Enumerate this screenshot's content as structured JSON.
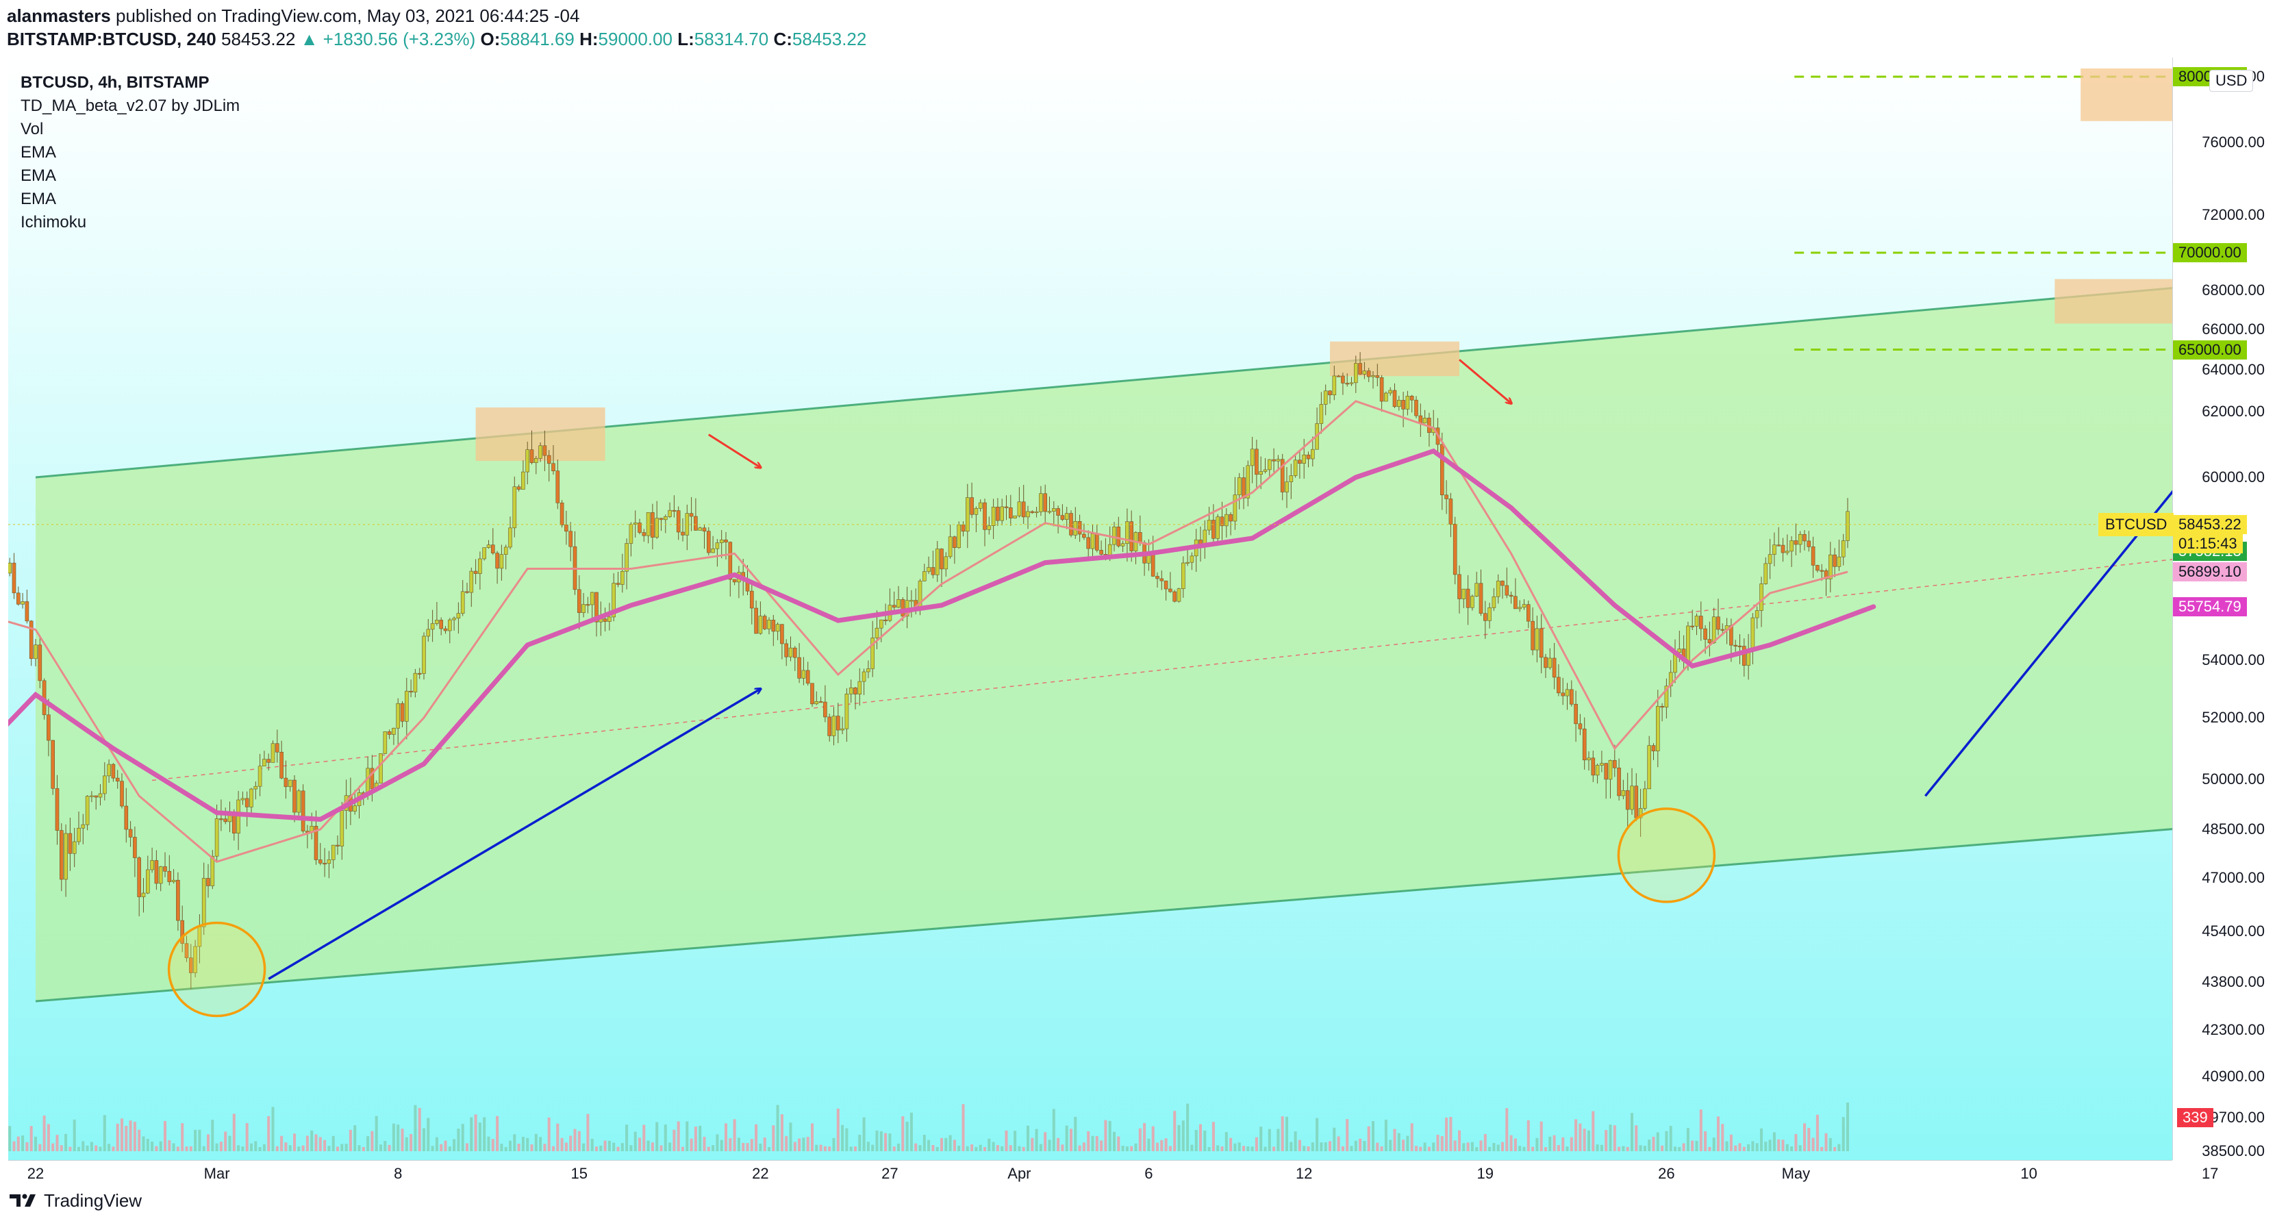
{
  "header": {
    "publisher": "alanmasters",
    "published_text": "published on TradingView.com, May 03, 2021 06:44:25 -04",
    "symbol": "BITSTAMP:BTCUSD, 240",
    "last": "58453.22",
    "change": "+1830.56 (+3.23%)",
    "open_label": "O:",
    "open": "58841.69",
    "high_label": "H:",
    "high": "59000.00",
    "low_label": "L:",
    "low": "58314.70",
    "close_label": "C:",
    "close": "58453.22"
  },
  "legend": {
    "title": "BTCUSD, 4h, BITSTAMP",
    "indicators": [
      "TD_MA_beta_v2.07 by JDLim",
      "Vol",
      "EMA",
      "EMA",
      "EMA",
      "Ichimoku"
    ]
  },
  "currency": "USD",
  "symbol_tag": "BTCUSD",
  "footer": {
    "brand": "TradingView"
  },
  "colors": {
    "channel_fill": "#b8f0a0",
    "channel_line": "#4caf7d",
    "level_line": "#8bd000",
    "zone": "#f5c78e",
    "ema_slow": "#d65cb0",
    "ema_fast": "#e88b8b",
    "arrow_blue": "#0a1fcf",
    "arrow_red": "#f2392d",
    "circle": "#f59e0b",
    "bg_top": "#ffffff",
    "bg_bottom": "#8ef7f7"
  },
  "chart_data": {
    "type": "candlestick",
    "title": "BTCUSD, 4h, BITSTAMP",
    "ylim": [
      37800,
      80500
    ],
    "xticks": [
      "22",
      "Mar",
      "8",
      "15",
      "22",
      "27",
      "Apr",
      "6",
      "12",
      "19",
      "26",
      "May",
      "10",
      "17"
    ],
    "yticks": [
      38500,
      39700,
      40900,
      42300,
      43800,
      45400,
      47000,
      48500,
      50000,
      52000,
      54000,
      60000,
      62000,
      64000,
      66000,
      68000,
      72000,
      76000,
      80000
    ],
    "price_labels": [
      {
        "value": 80000,
        "text": "80000.00",
        "color": "#8bd000"
      },
      {
        "value": 70000,
        "text": "70000.00",
        "color": "#8bd000"
      },
      {
        "value": 65000,
        "text": "65000.00",
        "color": "#8bd000"
      },
      {
        "value": 58453.22,
        "text": "58453.22",
        "color": "#f9e53a"
      },
      {
        "value": 57582.13,
        "text": "57582.13",
        "color": "#26a641"
      },
      {
        "value": 56899.1,
        "text": "56899.10",
        "color": "#f4a7d7"
      },
      {
        "value": 55754.79,
        "text": "55754.79",
        "color": "#e040c8"
      }
    ],
    "countdown": "01:15:43",
    "volume_label": "339",
    "channel": {
      "upper": [
        [
          "Feb 22",
          60000
        ],
        [
          "May 17",
          68300
        ]
      ],
      "lower": [
        [
          "Feb 22",
          43200
        ],
        [
          "May 17",
          48600
        ]
      ]
    },
    "levels": [
      80000,
      70000,
      65000
    ],
    "price_path": [
      [
        "Feb 20",
        56500
      ],
      [
        "Feb 21",
        57000
      ],
      [
        "Feb 22",
        54000
      ],
      [
        "Feb 23",
        47500
      ],
      [
        "Feb 24",
        49500
      ],
      [
        "Feb 25",
        50500
      ],
      [
        "Feb 26",
        46500
      ],
      [
        "Feb 27",
        47500
      ],
      [
        "Feb 28",
        44500
      ],
      [
        "Mar 1",
        48500
      ],
      [
        "Mar 2",
        49000
      ],
      [
        "Mar 3",
        51000
      ],
      [
        "Mar 4",
        49500
      ],
      [
        "Mar 5",
        47500
      ],
      [
        "Mar 6",
        49000
      ],
      [
        "Mar 7",
        50000
      ],
      [
        "Mar 8",
        52000
      ],
      [
        "Mar 9",
        54500
      ],
      [
        "Mar 10",
        55500
      ],
      [
        "Mar 11",
        57000
      ],
      [
        "Mar 12",
        57500
      ],
      [
        "Mar 13",
        61000
      ],
      [
        "Mar 14",
        60000
      ],
      [
        "Mar 15",
        56000
      ],
      [
        "Mar 16",
        55500
      ],
      [
        "Mar 17",
        58000
      ],
      [
        "Mar 18",
        58500
      ],
      [
        "Mar 19",
        58500
      ],
      [
        "Mar 20",
        58000
      ],
      [
        "Mar 21",
        57000
      ],
      [
        "Mar 22",
        55000
      ],
      [
        "Mar 23",
        54500
      ],
      [
        "Mar 24",
        52500
      ],
      [
        "Mar 25",
        51500
      ],
      [
        "Mar 26",
        54000
      ],
      [
        "Mar 27",
        55500
      ],
      [
        "Mar 28",
        56000
      ],
      [
        "Mar 29",
        57500
      ],
      [
        "Mar 30",
        58800
      ],
      [
        "Mar 31",
        58800
      ],
      [
        "Apr 1",
        58800
      ],
      [
        "Apr 2",
        59300
      ],
      [
        "Apr 3",
        58500
      ],
      [
        "Apr 4",
        57500
      ],
      [
        "Apr 5",
        58200
      ],
      [
        "Apr 6",
        57500
      ],
      [
        "Apr 7",
        56200
      ],
      [
        "Apr 8",
        58200
      ],
      [
        "Apr 9",
        58500
      ],
      [
        "Apr 10",
        60500
      ],
      [
        "Apr 11",
        60000
      ],
      [
        "Apr 12",
        60200
      ],
      [
        "Apr 13",
        63000
      ],
      [
        "Apr 14",
        64000
      ],
      [
        "Apr 15",
        63000
      ],
      [
        "Apr 16",
        62500
      ],
      [
        "Apr 17",
        61500
      ],
      [
        "Apr 18",
        56500
      ],
      [
        "Apr 19",
        55800
      ],
      [
        "Apr 20",
        56500
      ],
      [
        "Apr 21",
        54500
      ],
      [
        "Apr 22",
        53000
      ],
      [
        "Apr 23",
        50500
      ],
      [
        "Apr 24",
        50000
      ],
      [
        "Apr 25",
        49200
      ],
      [
        "Apr 26",
        53500
      ],
      [
        "Apr 27",
        55000
      ],
      [
        "Apr 28",
        55000
      ],
      [
        "Apr 29",
        53800
      ],
      [
        "Apr 30",
        57700
      ],
      [
        "May 1",
        57800
      ],
      [
        "May 2",
        56600
      ],
      [
        "May 3",
        58453.22
      ]
    ],
    "ema_slow": [
      [
        "Feb 20",
        51000
      ],
      [
        "Feb 22",
        52800
      ],
      [
        "Feb 25",
        51000
      ],
      [
        "Mar 1",
        49000
      ],
      [
        "Mar 5",
        48800
      ],
      [
        "Mar 9",
        50500
      ],
      [
        "Mar 13",
        54500
      ],
      [
        "Mar 17",
        55800
      ],
      [
        "Mar 21",
        56800
      ],
      [
        "Mar 25",
        55300
      ],
      [
        "Mar 29",
        55800
      ],
      [
        "Apr 2",
        57200
      ],
      [
        "Apr 6",
        57500
      ],
      [
        "Apr 10",
        58000
      ],
      [
        "Apr 14",
        60000
      ],
      [
        "Apr 17",
        60800
      ],
      [
        "Apr 20",
        59000
      ],
      [
        "Apr 24",
        55800
      ],
      [
        "Apr 27",
        53800
      ],
      [
        "Apr 30",
        54500
      ],
      [
        "May 4",
        55754.79
      ]
    ],
    "ema_fast": [
      [
        "Feb 20",
        55500
      ],
      [
        "Feb 22",
        55000
      ],
      [
        "Feb 26",
        49500
      ],
      [
        "Mar 1",
        47500
      ],
      [
        "Mar 5",
        48500
      ],
      [
        "Mar 9",
        52000
      ],
      [
        "Mar 13",
        57000
      ],
      [
        "Mar 17",
        57000
      ],
      [
        "Mar 21",
        57500
      ],
      [
        "Mar 25",
        53500
      ],
      [
        "Mar 29",
        56500
      ],
      [
        "Apr 2",
        58500
      ],
      [
        "Apr 6",
        57800
      ],
      [
        "Apr 10",
        59500
      ],
      [
        "Apr 14",
        62500
      ],
      [
        "Apr 17",
        61500
      ],
      [
        "Apr 20",
        57500
      ],
      [
        "Apr 24",
        51000
      ],
      [
        "Apr 27",
        54000
      ],
      [
        "Apr 30",
        56200
      ],
      [
        "May 3",
        56899.1
      ]
    ],
    "zones": [
      {
        "x0": "Mar 11",
        "x1": "Mar 16",
        "y0": 60500,
        "y1": 62200
      },
      {
        "x0": "Apr 13",
        "x1": "Apr 18",
        "y0": 63700,
        "y1": 65400
      },
      {
        "x0": "May 11",
        "x1": "May 16",
        "y0": 66300,
        "y1": 68600
      },
      {
        "x0": "May 12",
        "x1": "May 17",
        "y0": 77300,
        "y1": 80500
      }
    ],
    "circles": [
      {
        "x": "Mar 1",
        "y": 44200
      },
      {
        "x": "Apr 26",
        "y": 47700
      }
    ],
    "arrows_blue": [
      [
        [
          "Mar 3",
          43900
        ],
        [
          "Mar 22",
          53000
        ]
      ],
      [
        [
          "May 6",
          49500
        ],
        [
          "May 16",
          60000
        ]
      ]
    ],
    "arrows_red": [
      [
        [
          "Mar 20",
          61300
        ],
        [
          "Mar 22",
          60300
        ]
      ],
      [
        [
          "Apr 18",
          64500
        ],
        [
          "Apr 20",
          62400
        ]
      ]
    ]
  }
}
